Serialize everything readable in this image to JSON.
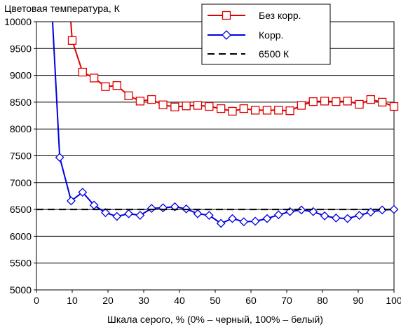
{
  "chart_data": {
    "type": "line",
    "title": "Цветовая температура, К",
    "xlabel": "Шкала серого, % (0% – черный, 100% – белый)",
    "ylabel": "",
    "xlim": [
      0,
      100
    ],
    "ylim": [
      5000,
      10000
    ],
    "x_ticks": [
      "0",
      "10",
      "20",
      "30",
      "40",
      "50",
      "60",
      "70",
      "80",
      "90",
      "100"
    ],
    "y_ticks": [
      "5000",
      "5500",
      "6000",
      "6500",
      "7000",
      "7500",
      "8000",
      "8500",
      "9000",
      "9500",
      "10000"
    ],
    "grid": "horizontal",
    "legend_position": "top-right",
    "series": [
      {
        "name": "Без корр.",
        "color": "#e00000",
        "marker": "square",
        "x": [
          9.6,
          10,
          12.9,
          16.1,
          19.3,
          22.5,
          25.8,
          29,
          32.2,
          35.4,
          38.7,
          41.9,
          45.1,
          48.3,
          51.6,
          54.8,
          58,
          61.2,
          64.5,
          67.7,
          70.9,
          74.1,
          77.4,
          80.6,
          83.8,
          87,
          90.3,
          93.5,
          96.7,
          100
        ],
        "y": [
          10000,
          9650,
          9060,
          8950,
          8790,
          8810,
          8620,
          8520,
          8550,
          8450,
          8410,
          8430,
          8440,
          8420,
          8380,
          8330,
          8380,
          8350,
          8350,
          8350,
          8340,
          8440,
          8510,
          8520,
          8510,
          8520,
          8460,
          8550,
          8500,
          8420
        ]
      },
      {
        "name": "Корр.",
        "color": "#0000e0",
        "marker": "diamond",
        "x": [
          4.5,
          6.5,
          9.7,
          12.9,
          16.1,
          19.3,
          22.5,
          25.8,
          29,
          32.2,
          35.4,
          38.7,
          41.9,
          45.1,
          48.3,
          51.6,
          54.8,
          58,
          61.2,
          64.5,
          67.7,
          70.9,
          74.1,
          77.4,
          80.6,
          83.8,
          87,
          90.3,
          93.5,
          96.7,
          100
        ],
        "y": [
          10000,
          7470,
          6660,
          6820,
          6580,
          6440,
          6370,
          6420,
          6390,
          6520,
          6530,
          6550,
          6510,
          6420,
          6390,
          6240,
          6330,
          6270,
          6280,
          6330,
          6400,
          6460,
          6490,
          6460,
          6380,
          6340,
          6330,
          6390,
          6450,
          6490,
          6500
        ]
      },
      {
        "name": "6500 К",
        "color": "#000000",
        "dashed": true,
        "x": [
          0,
          100
        ],
        "y": [
          6500,
          6500
        ]
      }
    ]
  }
}
